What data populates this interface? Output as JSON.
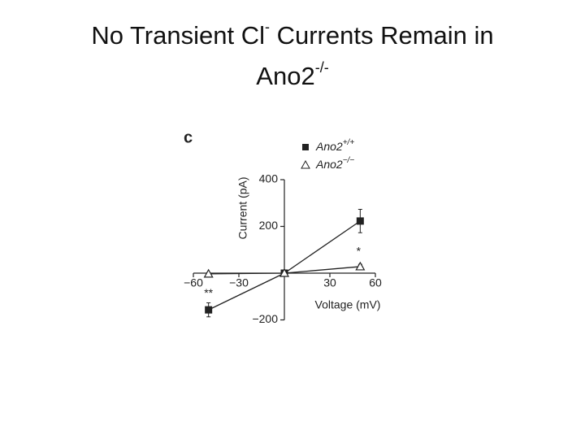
{
  "slide": {
    "title_line1": [
      "No Transient Cl",
      "-",
      " Currents Remain in"
    ],
    "title_line2": [
      "Ano2",
      "-/-"
    ]
  },
  "chart_data": {
    "type": "line",
    "panel_label": "c",
    "x_label": "Voltage (mV)",
    "y_label": "Current (pA)",
    "x": [
      -50,
      0,
      50
    ],
    "series": [
      {
        "name": "Ano2",
        "name_superscript": "+/+",
        "color": "#222222",
        "marker": "square",
        "values": [
          -157,
          0,
          223
        ],
        "errors": [
          30,
          5,
          50
        ]
      },
      {
        "name": "Ano2",
        "name_superscript": "−/−",
        "color": "#222222",
        "marker": "triangle",
        "values": [
          -3,
          0,
          28
        ],
        "errors": [
          5,
          5,
          10
        ]
      }
    ],
    "annotations": [
      "**",
      "*"
    ],
    "xlim": [
      -60,
      60
    ],
    "ylim": [
      -200,
      400
    ],
    "xticks": [
      {
        "value": -60,
        "label": "−60"
      },
      {
        "value": -30,
        "label": "−30"
      },
      30,
      60
    ],
    "yticks": [
      400,
      200,
      {
        "value": -200,
        "label": "−200"
      }
    ]
  }
}
